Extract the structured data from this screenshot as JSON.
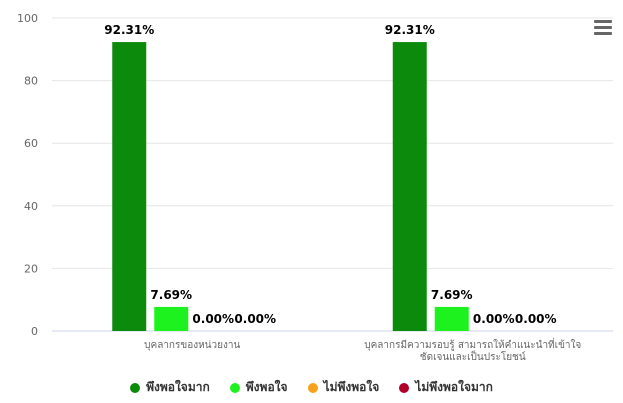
{
  "chart_data": {
    "type": "bar",
    "categories": [
      "บุคลากรของหน่วยงาน",
      "บุคลากรมีความรอบรู้ สามารถให้คำแนะนำที่เข้าใจ\nชัดเจนและเป็นประโยชน์"
    ],
    "series": [
      {
        "name": "พึงพอใจมาก",
        "color": "#0b8a0b",
        "values": [
          92.31,
          92.31
        ],
        "labels": [
          "92.31%",
          "92.31%"
        ]
      },
      {
        "name": "พึงพอใจ",
        "color": "#1ef21e",
        "values": [
          7.69,
          7.69
        ],
        "labels": [
          "7.69%",
          "7.69%"
        ]
      },
      {
        "name": "ไม่พึงพอใจ",
        "color": "#f7a21b",
        "values": [
          0,
          0
        ],
        "labels": [
          "0.00%",
          "0.00%"
        ]
      },
      {
        "name": "ไม่พึงพอใจมาก",
        "color": "#b0002a",
        "values": [
          0,
          0
        ],
        "labels": [
          "0.00%",
          "0.00%"
        ]
      }
    ],
    "ylim": [
      0,
      100
    ],
    "yticks": [
      0,
      20,
      40,
      60,
      80,
      100
    ],
    "grid": true,
    "legend_position": "bottom"
  },
  "menu_icon": "hamburger-menu-icon"
}
